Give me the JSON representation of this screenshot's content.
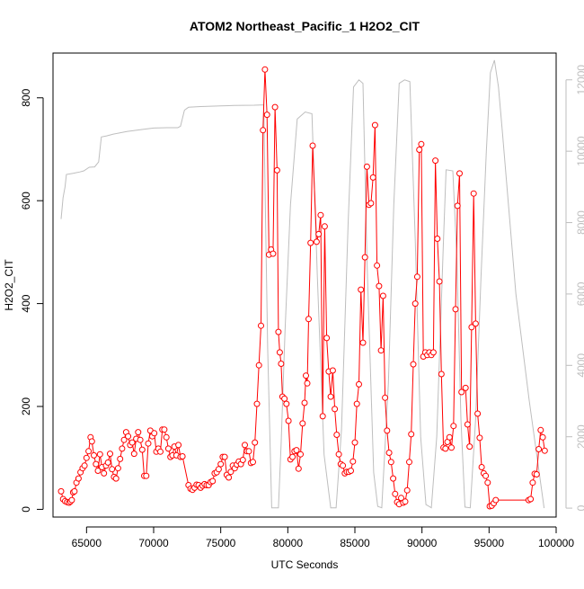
{
  "chart_data": {
    "type": "line",
    "title": "ATOM2 Northeast_Pacific_1 H2O2_CIT",
    "xlabel": "UTC Seconds",
    "ylabel": "H2O2_CIT",
    "xlim": [
      62500,
      100000
    ],
    "ylim": [
      -15,
      887
    ],
    "y2lim": [
      -250,
      12750
    ],
    "x_ticks": [
      65000,
      70000,
      75000,
      80000,
      85000,
      90000,
      95000,
      100000
    ],
    "x_tick_labels": [
      "65000",
      "70000",
      "75000",
      "80000",
      "85000",
      "90000",
      "95000",
      "100000"
    ],
    "y_ticks": [
      0,
      200,
      400,
      600,
      800
    ],
    "y_tick_labels": [
      "0",
      "200",
      "400",
      "600",
      "800"
    ],
    "y2_ticks": [
      0,
      2000,
      4000,
      6000,
      8000,
      10000,
      12000
    ],
    "y2_tick_labels": [
      "0",
      "2000",
      "4000",
      "6000",
      "8000",
      "10000",
      "12000"
    ],
    "grid": false,
    "colors": {
      "h2o2": "#ff0000",
      "altitude": "#bebebe",
      "axis": "#000000",
      "axis2": "#bebebe"
    },
    "series": [
      {
        "axis": "left",
        "style": "line+points",
        "points": [
          [
            63100,
            35
          ],
          [
            63250,
            20
          ],
          [
            63400,
            16
          ],
          [
            63550,
            14
          ],
          [
            63700,
            13
          ],
          [
            63800,
            15
          ],
          [
            63900,
            18
          ],
          [
            64000,
            33
          ],
          [
            64100,
            35
          ],
          [
            64250,
            52
          ],
          [
            64400,
            60
          ],
          [
            64550,
            72
          ],
          [
            64700,
            80
          ],
          [
            64850,
            85
          ],
          [
            65000,
            100
          ],
          [
            65150,
            113
          ],
          [
            65300,
            140
          ],
          [
            65400,
            132
          ],
          [
            65550,
            105
          ],
          [
            65700,
            88
          ],
          [
            65850,
            75
          ],
          [
            66000,
            107
          ],
          [
            66150,
            82
          ],
          [
            66300,
            70
          ],
          [
            66450,
            85
          ],
          [
            66600,
            91
          ],
          [
            66750,
            108
          ],
          [
            66900,
            78
          ],
          [
            67050,
            63
          ],
          [
            67200,
            60
          ],
          [
            67350,
            80
          ],
          [
            67500,
            98
          ],
          [
            67650,
            118
          ],
          [
            67800,
            135
          ],
          [
            67950,
            150
          ],
          [
            68100,
            142
          ],
          [
            68250,
            125
          ],
          [
            68400,
            130
          ],
          [
            68550,
            108
          ],
          [
            68700,
            137
          ],
          [
            68850,
            150
          ],
          [
            69000,
            135
          ],
          [
            69150,
            116
          ],
          [
            69300,
            65
          ],
          [
            69450,
            65
          ],
          [
            69600,
            128
          ],
          [
            69750,
            153
          ],
          [
            69900,
            142
          ],
          [
            70050,
            148
          ],
          [
            70200,
            112
          ],
          [
            70350,
            118
          ],
          [
            70500,
            112
          ],
          [
            70650,
            155
          ],
          [
            70800,
            155
          ],
          [
            70950,
            140
          ],
          [
            71100,
            118
          ],
          [
            71250,
            102
          ],
          [
            71400,
            105
          ],
          [
            71550,
            122
          ],
          [
            71700,
            105
          ],
          [
            71850,
            125
          ],
          [
            72000,
            102
          ],
          [
            72150,
            103
          ],
          [
            72600,
            47
          ],
          [
            72750,
            40
          ],
          [
            72900,
            38
          ],
          [
            73050,
            42
          ],
          [
            73200,
            48
          ],
          [
            73350,
            47
          ],
          [
            73500,
            42
          ],
          [
            73650,
            46
          ],
          [
            73800,
            49
          ],
          [
            73950,
            47
          ],
          [
            74100,
            47
          ],
          [
            74250,
            53
          ],
          [
            74400,
            55
          ],
          [
            74550,
            70
          ],
          [
            74700,
            72
          ],
          [
            74850,
            78
          ],
          [
            75000,
            88
          ],
          [
            75150,
            102
          ],
          [
            75300,
            102
          ],
          [
            75450,
            67
          ],
          [
            75600,
            62
          ],
          [
            75750,
            73
          ],
          [
            75900,
            85
          ],
          [
            76050,
            80
          ],
          [
            76200,
            87
          ],
          [
            76350,
            93
          ],
          [
            76500,
            88
          ],
          [
            76650,
            96
          ],
          [
            76800,
            125
          ],
          [
            76950,
            113
          ],
          [
            77100,
            113
          ],
          [
            77250,
            90
          ],
          [
            77400,
            92
          ],
          [
            77550,
            130
          ],
          [
            77700,
            205
          ],
          [
            77850,
            280
          ],
          [
            78000,
            357
          ],
          [
            78150,
            737
          ],
          [
            78300,
            855
          ],
          [
            78450,
            767
          ],
          [
            78600,
            495
          ],
          [
            78750,
            505
          ],
          [
            78900,
            497
          ],
          [
            79050,
            782
          ],
          [
            79200,
            659
          ],
          [
            79300,
            345
          ],
          [
            79400,
            305
          ],
          [
            79500,
            283
          ],
          [
            79600,
            219
          ],
          [
            79750,
            215
          ],
          [
            79900,
            205
          ],
          [
            80050,
            172
          ],
          [
            80200,
            97
          ],
          [
            80350,
            102
          ],
          [
            80500,
            113
          ],
          [
            80650,
            115
          ],
          [
            80800,
            79
          ],
          [
            80950,
            107
          ],
          [
            81100,
            167
          ],
          [
            81250,
            207
          ],
          [
            81350,
            260
          ],
          [
            81450,
            245
          ],
          [
            81550,
            370
          ],
          [
            81700,
            518
          ],
          [
            81850,
            707
          ],
          [
            82150,
            520
          ],
          [
            82300,
            535
          ],
          [
            82450,
            572
          ],
          [
            82600,
            181
          ],
          [
            82750,
            550
          ],
          [
            82900,
            333
          ],
          [
            83050,
            268
          ],
          [
            83200,
            219
          ],
          [
            83350,
            270
          ],
          [
            83500,
            195
          ],
          [
            83650,
            145
          ],
          [
            83800,
            107
          ],
          [
            83950,
            88
          ],
          [
            84100,
            85
          ],
          [
            84250,
            70
          ],
          [
            84400,
            73
          ],
          [
            84550,
            73
          ],
          [
            84700,
            75
          ],
          [
            84850,
            93
          ],
          [
            85000,
            130
          ],
          [
            85150,
            205
          ],
          [
            85300,
            243
          ],
          [
            85450,
            427
          ],
          [
            85600,
            324
          ],
          [
            85750,
            490
          ],
          [
            85900,
            666
          ],
          [
            86050,
            592
          ],
          [
            86200,
            595
          ],
          [
            86350,
            645
          ],
          [
            86500,
            747
          ],
          [
            86650,
            474
          ],
          [
            86800,
            434
          ],
          [
            86950,
            309
          ],
          [
            87100,
            415
          ],
          [
            87250,
            217
          ],
          [
            87400,
            153
          ],
          [
            87550,
            110
          ],
          [
            87700,
            92
          ],
          [
            87850,
            60
          ],
          [
            88000,
            30
          ],
          [
            88150,
            14
          ],
          [
            88300,
            10
          ],
          [
            88450,
            22
          ],
          [
            88600,
            13
          ],
          [
            88750,
            15
          ],
          [
            88900,
            37
          ],
          [
            89050,
            92
          ],
          [
            89200,
            146
          ],
          [
            89350,
            282
          ],
          [
            89500,
            400
          ],
          [
            89650,
            452
          ],
          [
            89800,
            699
          ],
          [
            89950,
            710
          ],
          [
            90100,
            297
          ],
          [
            90250,
            305
          ],
          [
            90400,
            300
          ],
          [
            90550,
            305
          ],
          [
            90700,
            300
          ],
          [
            90850,
            305
          ],
          [
            91000,
            678
          ],
          [
            91150,
            526
          ],
          [
            91300,
            443
          ],
          [
            91450,
            263
          ],
          [
            91600,
            120
          ],
          [
            91750,
            118
          ],
          [
            91900,
            131
          ],
          [
            92050,
            140
          ],
          [
            92200,
            120
          ],
          [
            92350,
            162
          ],
          [
            92500,
            389
          ],
          [
            92650,
            590
          ],
          [
            92800,
            653
          ],
          [
            92950,
            228
          ],
          [
            93250,
            236
          ],
          [
            93400,
            165
          ],
          [
            93550,
            122
          ],
          [
            93700,
            354
          ],
          [
            93850,
            614
          ],
          [
            94000,
            361
          ],
          [
            94150,
            186
          ],
          [
            94300,
            139
          ],
          [
            94450,
            82
          ],
          [
            94600,
            70
          ],
          [
            94750,
            65
          ],
          [
            94900,
            52
          ],
          [
            95050,
            6
          ],
          [
            95200,
            7
          ],
          [
            95350,
            12
          ],
          [
            95500,
            18
          ],
          [
            97950,
            18
          ],
          [
            98100,
            20
          ],
          [
            98250,
            52
          ],
          [
            98400,
            69
          ],
          [
            98550,
            68
          ],
          [
            98700,
            117
          ],
          [
            98850,
            154
          ],
          [
            99000,
            140
          ],
          [
            99150,
            114
          ]
        ]
      },
      {
        "axis": "right",
        "style": "line",
        "points": [
          [
            63100,
            8100
          ],
          [
            63250,
            8700
          ],
          [
            63400,
            9000
          ],
          [
            63500,
            9350
          ],
          [
            64000,
            9380
          ],
          [
            64500,
            9420
          ],
          [
            64800,
            9450
          ],
          [
            65200,
            9550
          ],
          [
            65600,
            9560
          ],
          [
            65900,
            9700
          ],
          [
            66100,
            10400
          ],
          [
            66500,
            10430
          ],
          [
            67000,
            10480
          ],
          [
            68000,
            10550
          ],
          [
            69000,
            10600
          ],
          [
            70000,
            10650
          ],
          [
            71000,
            10660
          ],
          [
            71800,
            10660
          ],
          [
            72000,
            10700
          ],
          [
            72300,
            11150
          ],
          [
            72600,
            11230
          ],
          [
            73500,
            11250
          ],
          [
            75000,
            11270
          ],
          [
            76000,
            11280
          ],
          [
            77500,
            11290
          ],
          [
            78200,
            11300
          ],
          [
            78500,
            4500
          ],
          [
            78800,
            10
          ],
          [
            79300,
            10
          ],
          [
            79500,
            1800
          ],
          [
            79800,
            5000
          ],
          [
            80200,
            8500
          ],
          [
            80700,
            10900
          ],
          [
            81300,
            11100
          ],
          [
            81800,
            11050
          ],
          [
            82200,
            6500
          ],
          [
            82700,
            1500
          ],
          [
            83200,
            10
          ],
          [
            83600,
            10
          ],
          [
            84000,
            2200
          ],
          [
            84500,
            8000
          ],
          [
            84900,
            11800
          ],
          [
            85300,
            12000
          ],
          [
            85600,
            11900
          ],
          [
            85900,
            7000
          ],
          [
            86400,
            1000
          ],
          [
            86700,
            50
          ],
          [
            87000,
            10
          ],
          [
            87500,
            3500
          ],
          [
            87900,
            8500
          ],
          [
            88300,
            11900
          ],
          [
            88700,
            12000
          ],
          [
            89100,
            11950
          ],
          [
            89500,
            7500
          ],
          [
            89900,
            2000
          ],
          [
            90300,
            100
          ],
          [
            90700,
            10
          ],
          [
            91100,
            2000
          ],
          [
            91600,
            7500
          ],
          [
            91800,
            9480
          ],
          [
            92300,
            9450
          ],
          [
            92600,
            7000
          ],
          [
            92900,
            2500
          ],
          [
            93200,
            30
          ],
          [
            93600,
            10
          ],
          [
            94000,
            2500
          ],
          [
            94400,
            6500
          ],
          [
            94800,
            10000
          ],
          [
            95100,
            12200
          ],
          [
            95400,
            12550
          ],
          [
            95700,
            11800
          ],
          [
            96000,
            10500
          ],
          [
            97000,
            6000
          ],
          [
            98000,
            3000
          ],
          [
            99100,
            1
          ]
        ]
      }
    ]
  }
}
